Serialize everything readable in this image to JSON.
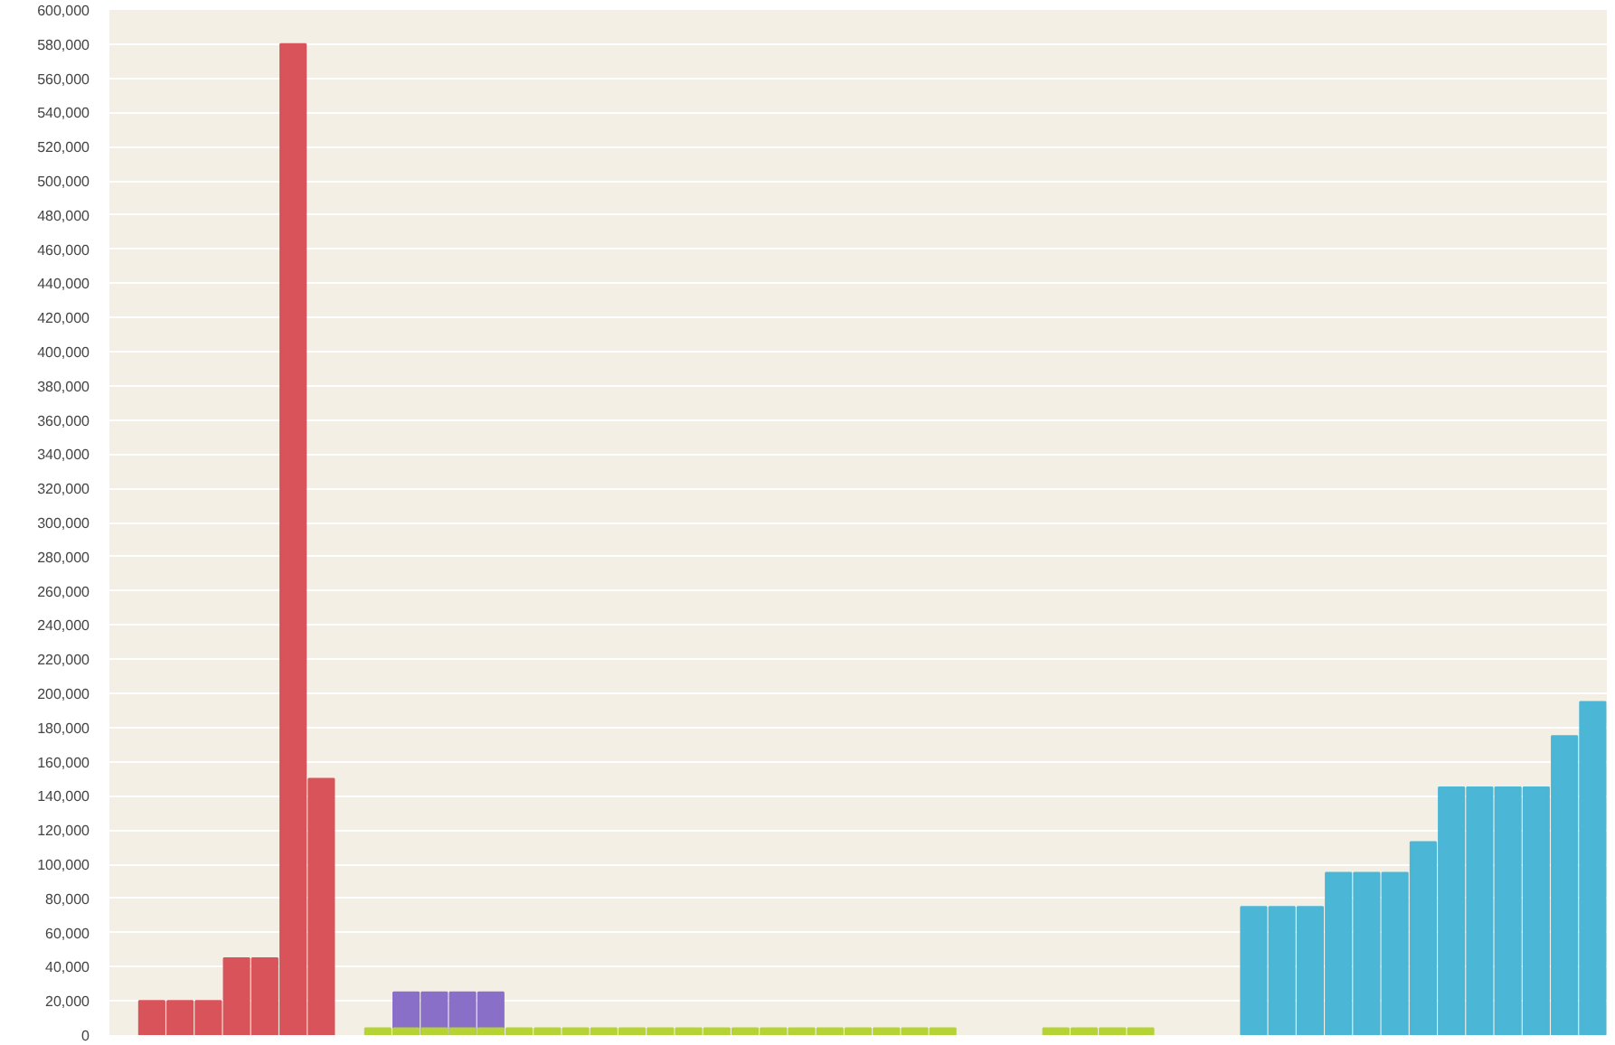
{
  "chart_data": {
    "type": "bar",
    "categories": [
      null,
      null,
      null,
      null,
      null,
      null,
      null,
      null,
      null,
      null,
      null,
      null,
      null,
      null,
      null,
      null,
      null,
      null,
      null,
      null,
      null,
      null,
      null,
      null,
      null,
      null,
      null,
      null,
      null,
      null,
      null,
      null,
      null,
      null,
      null,
      null,
      null,
      null,
      null,
      null,
      null,
      null,
      null,
      null,
      null,
      null,
      null,
      null,
      null,
      null,
      null,
      null,
      null
    ],
    "series": [
      {
        "color": "#d9545a",
        "values": [
          null,
          20000,
          20000,
          20000,
          45000,
          45000,
          580000,
          150000,
          null,
          null,
          null,
          null,
          null,
          null,
          null,
          null,
          null,
          null,
          null,
          null,
          null,
          null,
          null,
          null,
          null,
          null,
          null,
          null,
          null,
          null,
          null,
          null,
          null,
          null,
          null,
          null,
          null,
          null,
          null,
          null,
          null,
          null,
          null,
          null,
          null,
          null,
          null,
          null,
          null,
          null,
          null,
          null,
          null
        ]
      },
      {
        "color": "#8a6fc9",
        "values": [
          null,
          null,
          null,
          null,
          null,
          null,
          null,
          null,
          null,
          null,
          25000,
          25000,
          25000,
          25000,
          null,
          null,
          null,
          null,
          null,
          null,
          null,
          null,
          null,
          null,
          null,
          null,
          null,
          null,
          null,
          null,
          null,
          null,
          null,
          null,
          null,
          null,
          null,
          null,
          null,
          null,
          null,
          null,
          null,
          null,
          null,
          null,
          null,
          null,
          null,
          null,
          null,
          null,
          null
        ]
      },
      {
        "color": "#b5d335",
        "values": [
          null,
          null,
          null,
          null,
          null,
          null,
          null,
          null,
          null,
          4000,
          4000,
          4000,
          4000,
          4000,
          4000,
          4000,
          4000,
          4000,
          4000,
          4000,
          4000,
          4000,
          4000,
          4000,
          4000,
          4000,
          4000,
          4000,
          4000,
          4000,
          null,
          null,
          null,
          4000,
          4000,
          4000,
          4000,
          null,
          null,
          null,
          null,
          null,
          null,
          null,
          null,
          null,
          null,
          null,
          null,
          null,
          null,
          null,
          null
        ]
      },
      {
        "color": "#4bb6d6",
        "values": [
          null,
          null,
          null,
          null,
          null,
          null,
          null,
          null,
          null,
          null,
          null,
          null,
          null,
          null,
          null,
          null,
          null,
          null,
          null,
          null,
          null,
          null,
          null,
          null,
          null,
          null,
          null,
          null,
          null,
          null,
          null,
          null,
          null,
          null,
          null,
          null,
          null,
          null,
          null,
          null,
          75000,
          75000,
          75000,
          95000,
          95000,
          95000,
          113000,
          145000,
          145000,
          145000,
          145000,
          175000,
          195000
        ]
      }
    ],
    "ylim": [
      0,
      600000
    ],
    "yticks": [
      0,
      {
        "value": 20000,
        "label": "20,000"
      },
      {
        "value": 40000,
        "label": "40,000"
      },
      {
        "value": 60000,
        "label": "60,000"
      },
      {
        "value": 80000,
        "label": "80,000"
      },
      {
        "value": 100000,
        "label": "100,000"
      },
      {
        "value": 120000,
        "label": "120,000"
      },
      {
        "value": 140000,
        "label": "140,000"
      },
      {
        "value": 160000,
        "label": "160,000"
      },
      {
        "value": 180000,
        "label": "180,000"
      },
      {
        "value": 200000,
        "label": "200,000"
      },
      {
        "value": 220000,
        "label": "220,000"
      },
      {
        "value": 240000,
        "label": "240,000"
      },
      {
        "value": 260000,
        "label": "260,000"
      },
      {
        "value": 280000,
        "label": "280,000"
      },
      {
        "value": 300000,
        "label": "300,000"
      },
      {
        "value": 320000,
        "label": "320,000"
      },
      {
        "value": 340000,
        "label": "340,000"
      },
      {
        "value": 360000,
        "label": "360,000"
      },
      {
        "value": 380000,
        "label": "380,000"
      },
      {
        "value": 400000,
        "label": "400,000"
      },
      {
        "value": 420000,
        "label": "420,000"
      },
      {
        "value": 440000,
        "label": "440,000"
      },
      {
        "value": 460000,
        "label": "460,000"
      },
      {
        "value": 480000,
        "label": "480,000"
      },
      {
        "value": 500000,
        "label": "500,000"
      },
      {
        "value": 520000,
        "label": "520,000"
      },
      {
        "value": 540000,
        "label": "540,000"
      },
      {
        "value": 560000,
        "label": "560,000"
      },
      {
        "value": 580000,
        "label": "580,000"
      },
      {
        "value": 600000,
        "label": "600,000"
      }
    ],
    "grid": "y"
  }
}
